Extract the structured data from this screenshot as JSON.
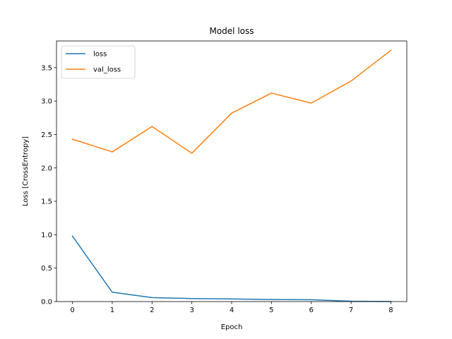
{
  "chart_data": {
    "type": "line",
    "title": "Model loss",
    "xlabel": "Epoch",
    "ylabel": "Loss [CrossEntropy]",
    "x": [
      0,
      1,
      2,
      3,
      4,
      5,
      6,
      7,
      8
    ],
    "xlim": [
      -0.4,
      8.4
    ],
    "ylim": [
      0,
      3.9
    ],
    "xticks": [
      0,
      1,
      2,
      3,
      4,
      5,
      6,
      7,
      8
    ],
    "yticks": [
      0.0,
      0.5,
      1.0,
      1.5,
      2.0,
      2.5,
      3.0,
      3.5
    ],
    "ytick_labels": [
      "0.0",
      "0.5",
      "1.0",
      "1.5",
      "2.0",
      "2.5",
      "3.0",
      "3.5"
    ],
    "grid": false,
    "legend_position": "top-left",
    "series": [
      {
        "name": "loss",
        "color": "#1f77b4",
        "values": [
          0.98,
          0.14,
          0.06,
          0.045,
          0.04,
          0.03,
          0.028,
          0.005,
          0.002
        ]
      },
      {
        "name": "val_loss",
        "color": "#ff7f0e",
        "values": [
          2.43,
          2.24,
          2.62,
          2.22,
          2.82,
          3.12,
          2.97,
          3.3,
          3.76
        ]
      }
    ]
  }
}
